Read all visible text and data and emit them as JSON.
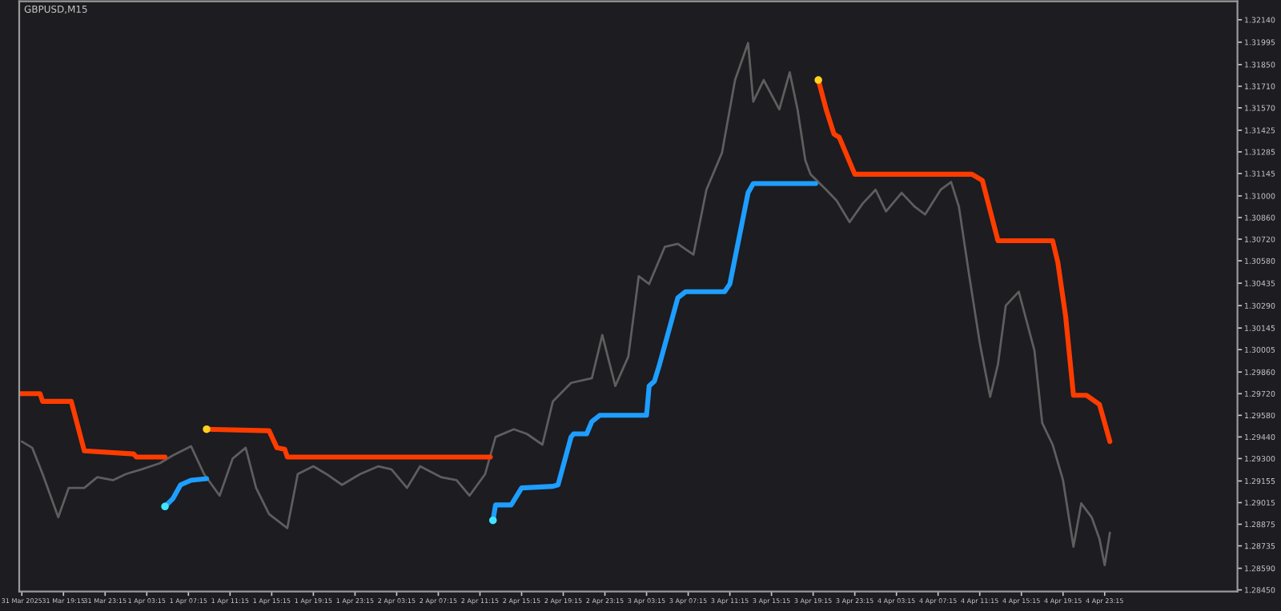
{
  "chart_data": {
    "type": "line",
    "title": "GBPUSD,M15",
    "xlim": [
      "2025-03-31T15:00",
      "2025-04-05T12:00"
    ],
    "xticks": [
      {
        "value": "2025-03-31T15:15",
        "label": "31 Mar 2025"
      },
      {
        "value": "2025-03-31T19:15",
        "label": "31 Mar 19:15"
      },
      {
        "value": "2025-03-31T23:15",
        "label": "31 Mar 23:15"
      },
      {
        "value": "2025-04-01T03:15",
        "label": "1 Apr 03:15"
      },
      {
        "value": "2025-04-01T07:15",
        "label": "1 Apr 07:15"
      },
      {
        "value": "2025-04-01T11:15",
        "label": "1 Apr 11:15"
      },
      {
        "value": "2025-04-01T15:15",
        "label": "1 Apr 15:15"
      },
      {
        "value": "2025-04-01T19:15",
        "label": "1 Apr 19:15"
      },
      {
        "value": "2025-04-01T23:15",
        "label": "1 Apr 23:15"
      },
      {
        "value": "2025-04-02T03:15",
        "label": "2 Apr 03:15"
      },
      {
        "value": "2025-04-02T07:15",
        "label": "2 Apr 07:15"
      },
      {
        "value": "2025-04-02T11:15",
        "label": "2 Apr 11:15"
      },
      {
        "value": "2025-04-02T15:15",
        "label": "2 Apr 15:15"
      },
      {
        "value": "2025-04-02T19:15",
        "label": "2 Apr 19:15"
      },
      {
        "value": "2025-04-02T23:15",
        "label": "2 Apr 23:15"
      },
      {
        "value": "2025-04-03T03:15",
        "label": "3 Apr 03:15"
      },
      {
        "value": "2025-04-03T07:15",
        "label": "3 Apr 07:15"
      },
      {
        "value": "2025-04-03T11:15",
        "label": "3 Apr 11:15"
      },
      {
        "value": "2025-04-03T15:15",
        "label": "3 Apr 15:15"
      },
      {
        "value": "2025-04-03T19:15",
        "label": "3 Apr 19:15"
      },
      {
        "value": "2025-04-03T23:15",
        "label": "3 Apr 23:15"
      },
      {
        "value": "2025-04-04T03:15",
        "label": "4 Apr 03:15"
      },
      {
        "value": "2025-04-04T07:15",
        "label": "4 Apr 07:15"
      },
      {
        "value": "2025-04-04T11:15",
        "label": "4 Apr 11:15"
      },
      {
        "value": "2025-04-04T15:15",
        "label": "4 Apr 15:15"
      },
      {
        "value": "2025-04-04T19:15",
        "label": "4 Apr 19:15"
      },
      {
        "value": "2025-04-04T23:15",
        "label": "4 Apr 23:15"
      }
    ],
    "ylim": [
      1.2844,
      1.3226
    ],
    "yticks": [
      {
        "value": 1.2845,
        "label": "1.28450"
      },
      {
        "value": 1.2859,
        "label": "1.28590"
      },
      {
        "value": 1.28735,
        "label": "1.28735"
      },
      {
        "value": 1.28875,
        "label": "1.28875"
      },
      {
        "value": 1.29015,
        "label": "1.29015"
      },
      {
        "value": 1.29155,
        "label": "1.29155"
      },
      {
        "value": 1.293,
        "label": "1.29300"
      },
      {
        "value": 1.2944,
        "label": "1.29440"
      },
      {
        "value": 1.2958,
        "label": "1.29580"
      },
      {
        "value": 1.2972,
        "label": "1.29720"
      },
      {
        "value": 1.2986,
        "label": "1.29860"
      },
      {
        "value": 1.30005,
        "label": "1.30005"
      },
      {
        "value": 1.30145,
        "label": "1.30145"
      },
      {
        "value": 1.3029,
        "label": "1.30290"
      },
      {
        "value": 1.30435,
        "label": "1.30435"
      },
      {
        "value": 1.3058,
        "label": "1.30580"
      },
      {
        "value": 1.3072,
        "label": "1.30720"
      },
      {
        "value": 1.3086,
        "label": "1.30860"
      },
      {
        "value": 1.31,
        "label": "1.31000"
      },
      {
        "value": 1.31145,
        "label": "1.31145"
      },
      {
        "value": 1.31285,
        "label": "1.31285"
      },
      {
        "value": 1.31425,
        "label": "1.31425"
      },
      {
        "value": 1.3157,
        "label": "1.31570"
      },
      {
        "value": 1.3171,
        "label": "1.31710"
      },
      {
        "value": 1.3185,
        "label": "1.31850"
      },
      {
        "value": 1.31995,
        "label": "1.31995"
      },
      {
        "value": 1.3214,
        "label": "1.32140"
      }
    ],
    "grid": false,
    "legend": false,
    "series": [
      {
        "color": "#5e5e5e",
        "x": [
          "2025-03-31T15:15",
          "2025-03-31T16:15",
          "2025-03-31T17:15",
          "2025-03-31T18:45",
          "2025-03-31T19:45",
          "2025-03-31T21:15",
          "2025-03-31T22:30",
          "2025-04-01T00:00",
          "2025-04-01T01:15",
          "2025-04-01T02:45",
          "2025-04-01T04:30",
          "2025-04-01T05:45",
          "2025-04-01T07:30",
          "2025-04-01T08:45",
          "2025-04-01T10:15",
          "2025-04-01T11:30",
          "2025-04-01T12:45",
          "2025-04-01T13:45",
          "2025-04-01T15:00",
          "2025-04-01T16:45",
          "2025-04-01T17:45",
          "2025-04-01T19:15",
          "2025-04-01T20:30",
          "2025-04-01T22:00",
          "2025-04-01T23:45",
          "2025-04-02T01:30",
          "2025-04-02T02:45",
          "2025-04-02T04:15",
          "2025-04-02T05:30",
          "2025-04-02T07:30",
          "2025-04-02T09:00",
          "2025-04-02T10:15",
          "2025-04-02T11:45",
          "2025-04-02T12:45",
          "2025-04-02T14:30",
          "2025-04-02T15:45",
          "2025-04-02T17:15",
          "2025-04-02T18:15",
          "2025-04-02T20:00",
          "2025-04-02T22:00",
          "2025-04-02T23:00",
          "2025-04-03T00:15",
          "2025-04-03T01:30",
          "2025-04-03T02:30",
          "2025-04-03T03:30",
          "2025-04-03T05:00",
          "2025-04-03T06:15",
          "2025-04-03T07:45",
          "2025-04-03T09:00",
          "2025-04-03T10:30",
          "2025-04-03T11:45",
          "2025-04-03T13:00",
          "2025-04-03T13:30",
          "2025-04-03T14:30",
          "2025-04-03T16:00",
          "2025-04-03T17:00",
          "2025-04-03T17:45",
          "2025-04-03T18:30",
          "2025-04-03T19:00",
          "2025-04-03T20:30",
          "2025-04-03T21:30",
          "2025-04-03T22:45",
          "2025-04-04T00:00",
          "2025-04-04T01:15",
          "2025-04-04T02:15",
          "2025-04-04T03:45",
          "2025-04-04T05:00",
          "2025-04-04T06:00",
          "2025-04-04T07:30",
          "2025-04-04T08:30",
          "2025-04-04T09:15",
          "2025-04-04T10:15",
          "2025-04-04T11:15",
          "2025-04-04T12:15",
          "2025-04-04T13:00",
          "2025-04-04T13:45",
          "2025-04-04T15:00",
          "2025-04-04T16:30",
          "2025-04-04T17:15",
          "2025-04-04T18:15",
          "2025-04-04T19:15",
          "2025-04-04T20:15",
          "2025-04-04T21:00",
          "2025-04-04T22:00",
          "2025-04-04T22:45",
          "2025-04-04T23:15",
          "2025-04-04T23:45"
        ],
        "values": [
          1.2941,
          1.2937,
          1.292,
          1.2892,
          1.2911,
          1.2911,
          1.2918,
          1.2916,
          1.292,
          1.2923,
          1.2927,
          1.2932,
          1.2938,
          1.292,
          1.2906,
          1.293,
          1.2937,
          1.2911,
          1.2894,
          1.2885,
          1.292,
          1.2925,
          1.292,
          1.2913,
          1.292,
          1.2925,
          1.2923,
          1.2911,
          1.2925,
          1.2918,
          1.2916,
          1.2906,
          1.292,
          1.2944,
          1.2949,
          1.2946,
          1.2939,
          1.2967,
          1.2979,
          1.2982,
          1.301,
          1.2977,
          1.2996,
          1.3048,
          1.3043,
          1.3067,
          1.3069,
          1.3062,
          1.3104,
          1.3128,
          1.3175,
          1.3199,
          1.3161,
          1.3175,
          1.3156,
          1.318,
          1.3156,
          1.3123,
          1.3114,
          1.3104,
          1.3097,
          1.3083,
          1.3095,
          1.3104,
          1.309,
          1.3102,
          1.3093,
          1.3088,
          1.3104,
          1.3109,
          1.3093,
          1.3048,
          1.3005,
          1.297,
          1.2991,
          1.3029,
          1.3038,
          1.3,
          1.2953,
          1.2939,
          1.2916,
          1.2873,
          1.2901,
          1.2892,
          1.2878,
          1.2861,
          1.2882
        ]
      },
      {
        "type": "line",
        "color": "#ff3c00",
        "x": [
          "2025-03-31T15:00",
          "2025-03-31T17:00",
          "2025-03-31T17:15",
          "2025-03-31T20:00",
          "2025-03-31T21:15",
          "2025-04-01T02:00",
          "2025-04-01T02:15",
          "2025-04-01T05:00",
          "2025-04-01T07:00",
          "2025-04-01T09:00",
          "2025-04-01T15:00",
          "2025-04-01T15:45",
          "2025-04-01T16:30",
          "2025-04-01T16:45",
          "2025-04-02T12:15",
          "2025-04-03T03:00",
          "2025-04-03T19:45",
          "2025-04-03T20:30",
          "2025-04-03T21:15",
          "2025-04-03T21:45",
          "2025-04-03T23:15",
          "2025-04-04T10:30",
          "2025-04-04T11:30",
          "2025-04-04T13:00",
          "2025-04-04T18:15",
          "2025-04-04T18:45",
          "2025-04-04T19:30",
          "2025-04-04T20:15",
          "2025-04-04T21:30",
          "2025-04-04T22:45",
          "2025-04-04T23:45"
        ],
        "values": [
          1.2972,
          1.2972,
          1.2967,
          1.2967,
          1.2935,
          1.2933,
          1.2931,
          1.2931,
          null,
          1.2949,
          1.2948,
          1.2937,
          1.2936,
          1.2931,
          1.2931,
          null,
          1.3175,
          1.3156,
          1.314,
          1.3138,
          1.3114,
          1.3114,
          1.311,
          1.3071,
          1.3071,
          1.3057,
          1.3022,
          1.2971,
          1.2971,
          1.2965,
          1.2941
        ]
      },
      {
        "type": "line",
        "color": "#1e9eff",
        "x": [
          "2025-04-01T05:00",
          "2025-04-01T05:45",
          "2025-04-01T06:30",
          "2025-04-01T07:30",
          "2025-04-01T09:00",
          "2025-04-01T21:00",
          "2025-04-02T12:30",
          "2025-04-02T12:45",
          "2025-04-02T14:15",
          "2025-04-02T15:15",
          "2025-04-02T18:15",
          "2025-04-02T18:45",
          "2025-04-02T20:00",
          "2025-04-02T20:15",
          "2025-04-02T21:30",
          "2025-04-02T22:00",
          "2025-04-02T22:45",
          "2025-04-03T03:15",
          "2025-04-03T03:30",
          "2025-04-03T04:00",
          "2025-04-03T04:30",
          "2025-04-03T06:15",
          "2025-04-03T07:00",
          "2025-04-03T10:45",
          "2025-04-03T11:15",
          "2025-04-03T13:00",
          "2025-04-03T13:30",
          "2025-04-03T19:30"
        ],
        "values": [
          1.2899,
          1.2904,
          1.2913,
          1.2916,
          1.2917,
          null,
          1.289,
          1.29,
          1.29,
          1.2911,
          1.2912,
          1.2913,
          1.2944,
          1.2946,
          1.2946,
          1.2954,
          1.2958,
          1.2958,
          1.2977,
          1.298,
          1.2991,
          1.3034,
          1.3038,
          1.3038,
          1.3043,
          1.3102,
          1.3108,
          1.3108
        ]
      },
      {
        "type": "scatter",
        "color": "#ffd21e",
        "x": [
          "2025-04-01T09:00",
          "2025-04-03T19:45"
        ],
        "values": [
          1.2949,
          1.3175
        ]
      },
      {
        "type": "scatter",
        "color": "#40e6ff",
        "x": [
          "2025-04-01T05:00",
          "2025-04-02T12:30"
        ],
        "values": [
          1.2899,
          1.289
        ]
      }
    ]
  }
}
